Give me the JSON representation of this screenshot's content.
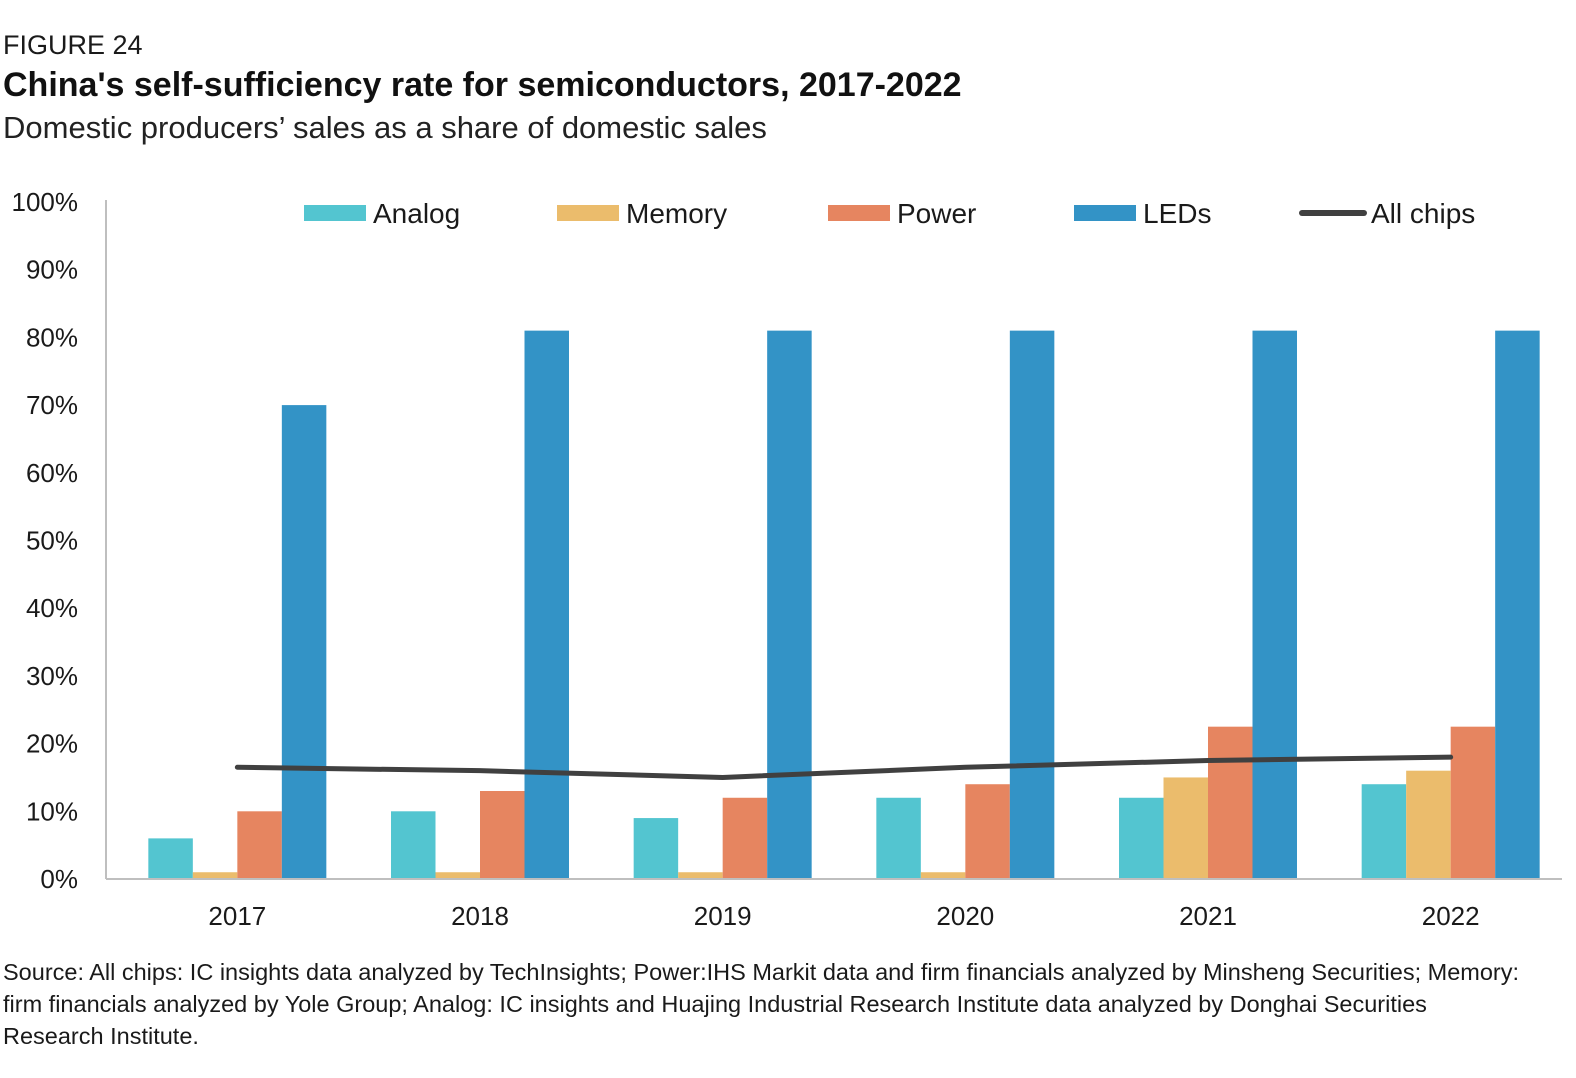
{
  "figure_label": "FIGURE 24",
  "title": "China's self-sufficiency rate for semiconductors, 2017-2022",
  "subtitle": "Domestic producers’ sales as a share of domestic sales",
  "source": "Source: All chips: IC insights data analyzed by TechInsights; Power:IHS Markit data and firm financials analyzed by Minsheng Securities; Memory: firm financials analyzed by Yole Group; Analog: IC insights and Huajing Industrial Research Institute data analyzed by Donghai Securities Research Institute.",
  "chart_data": {
    "type": "bar",
    "categories": [
      "2017",
      "2018",
      "2019",
      "2020",
      "2021",
      "2022"
    ],
    "series": [
      {
        "name": "Analog",
        "kind": "bar",
        "color": "#53c5d0",
        "values": [
          6,
          10,
          9,
          12,
          12,
          14
        ]
      },
      {
        "name": "Memory",
        "kind": "bar",
        "color": "#ebbc6c",
        "values": [
          1,
          1,
          1,
          1,
          15,
          16
        ]
      },
      {
        "name": "Power",
        "kind": "bar",
        "color": "#e68560",
        "values": [
          10,
          13,
          12,
          14,
          22.5,
          22.5
        ]
      },
      {
        "name": "LEDs",
        "kind": "bar",
        "color": "#3393c6",
        "values": [
          70,
          81,
          81,
          81,
          81,
          81
        ]
      },
      {
        "name": "All chips",
        "kind": "line",
        "color": "#404040",
        "values": [
          16.5,
          16,
          15,
          16.5,
          17.5,
          18
        ]
      }
    ],
    "yticks": [
      "0%",
      "10%",
      "20%",
      "30%",
      "40%",
      "50%",
      "60%",
      "70%",
      "80%",
      "90%",
      "100%"
    ],
    "ylim": [
      0,
      100
    ],
    "xlabel": "",
    "ylabel": "",
    "legend_position": "top",
    "grid": false
  }
}
